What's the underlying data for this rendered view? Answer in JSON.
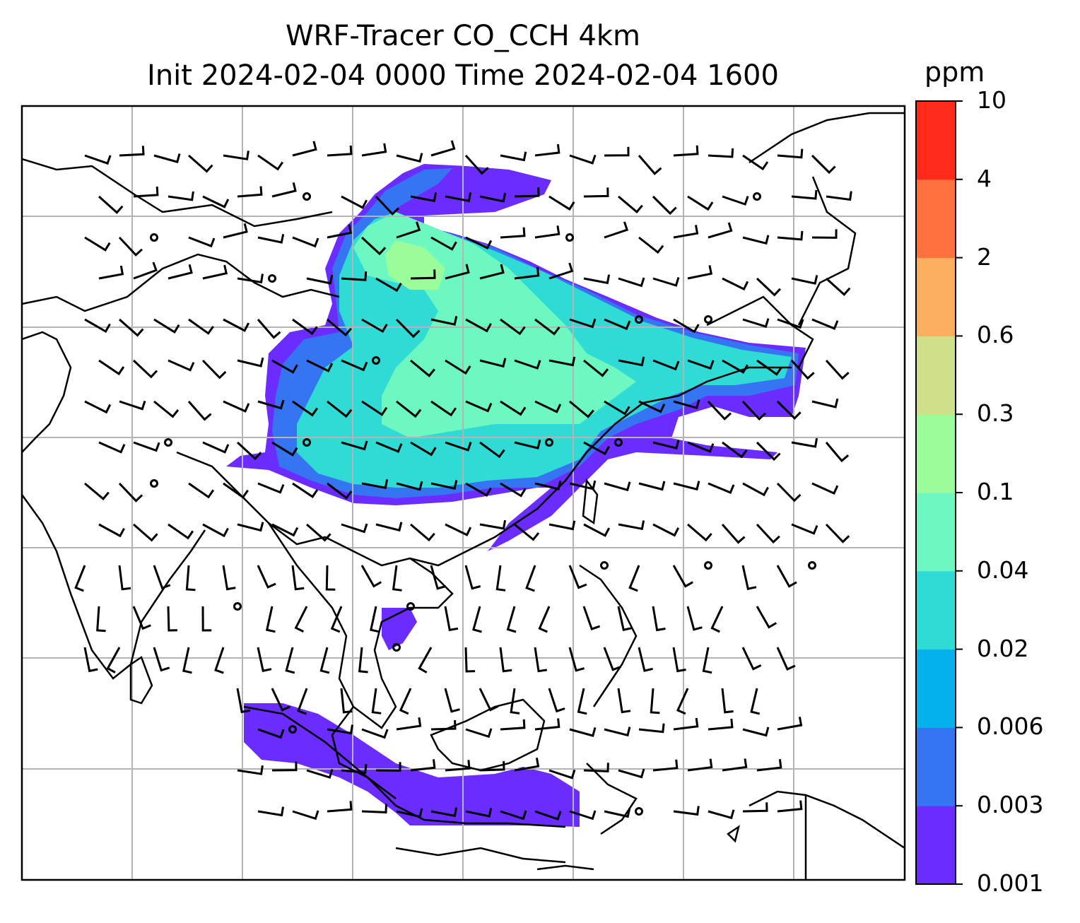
{
  "title": {
    "line1": "WRF-Tracer CO_CCH 4km",
    "line2": "Init 2024-02-04 0000 Time 2024-02-04 1600"
  },
  "colorbar": {
    "unit": "ppm",
    "levels": [
      "0.001",
      "0.003",
      "0.006",
      "0.02",
      "0.04",
      "0.1",
      "0.3",
      "0.6",
      "2",
      "4",
      "10"
    ],
    "colors": [
      "#6a2cff",
      "#3575f2",
      "#05b1ea",
      "#2fdbd4",
      "#6cf8c0",
      "#9bfc9a",
      "#cfe08a",
      "#fcb05f",
      "#ff7240",
      "#ff2a1a"
    ]
  },
  "map": {
    "gridlines": true,
    "coastline_color": "#000000",
    "grid_color": "#b4b4b4"
  }
}
